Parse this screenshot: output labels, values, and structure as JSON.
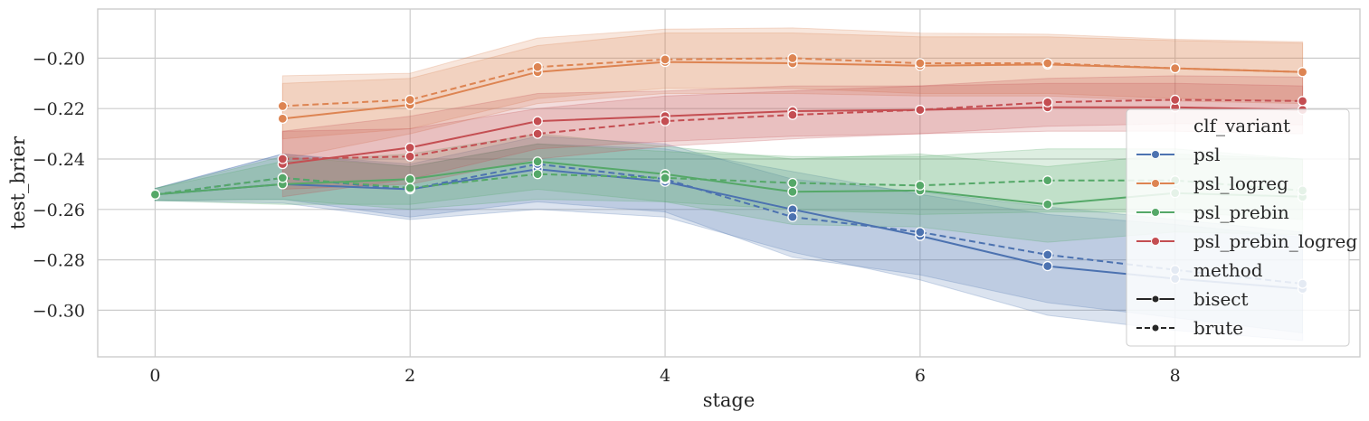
{
  "chart_data": {
    "type": "line",
    "xlabel": "stage",
    "ylabel": "test_brier",
    "xlim": [
      -0.45,
      9.45
    ],
    "ylim": [
      -0.3185,
      -0.1805
    ],
    "xticks": [
      0,
      2,
      4,
      6,
      8
    ],
    "yticks": [
      -0.2,
      -0.22,
      -0.24,
      -0.26,
      -0.28,
      -0.3
    ],
    "xtick_labels": [
      "0",
      "2",
      "4",
      "6",
      "8"
    ],
    "ytick_labels": [
      "−0.20",
      "−0.22",
      "−0.24",
      "−0.26",
      "−0.28",
      "−0.30"
    ],
    "grid": true,
    "legend_position": "right",
    "legend": {
      "hue_title": "clf_variant",
      "style_title": "method",
      "bisect_label": "bisect",
      "brute_label": "brute"
    },
    "series": [
      {
        "name": "psl",
        "color": "#4c72b0",
        "bisect": {
          "x": [
            0,
            1,
            2,
            3,
            4,
            5,
            6,
            7,
            8,
            9
          ],
          "y": [
            -0.2541,
            -0.25,
            -0.252,
            -0.244,
            -0.249,
            -0.26,
            -0.2705,
            -0.2825,
            -0.2875,
            -0.2915
          ]
        },
        "brute": {
          "x": [
            0,
            1,
            2,
            3,
            4,
            5,
            6,
            7,
            8,
            9
          ],
          "y": [
            -0.2541,
            -0.2475,
            -0.252,
            -0.242,
            -0.248,
            -0.263,
            -0.269,
            -0.278,
            -0.284,
            -0.2895
          ]
        },
        "band_bisect": {
          "lo": [
            -0.2565,
            -0.2575,
            -0.264,
            -0.26,
            -0.263,
            -0.277,
            -0.288,
            -0.302,
            -0.308,
            -0.312
          ],
          "hi": [
            -0.2517,
            -0.238,
            -0.243,
            -0.234,
            -0.236,
            -0.245,
            -0.254,
            -0.262,
            -0.266,
            -0.271
          ]
        },
        "band_brute": {
          "lo": [
            -0.2565,
            -0.256,
            -0.263,
            -0.257,
            -0.261,
            -0.279,
            -0.286,
            -0.297,
            -0.303,
            -0.309
          ],
          "hi": [
            -0.2517,
            -0.238,
            -0.242,
            -0.231,
            -0.234,
            -0.248,
            -0.253,
            -0.259,
            -0.264,
            -0.269
          ]
        }
      },
      {
        "name": "psl_logreg",
        "color": "#dd8452",
        "bisect": {
          "x": [
            1,
            2,
            3,
            4,
            5,
            6,
            7,
            8,
            9
          ],
          "y": [
            -0.224,
            -0.2185,
            -0.2055,
            -0.2015,
            -0.202,
            -0.203,
            -0.2025,
            -0.204,
            -0.2055
          ]
        },
        "brute": {
          "x": [
            1,
            2,
            3,
            4,
            5,
            6,
            7,
            8,
            9
          ],
          "y": [
            -0.219,
            -0.2165,
            -0.2035,
            -0.2005,
            -0.2,
            -0.202,
            -0.202,
            -0.204,
            -0.2055
          ]
        },
        "band_bisect": {
          "lo": [
            -0.24,
            -0.23,
            -0.218,
            -0.214,
            -0.214,
            -0.215,
            -0.215,
            -0.217,
            -0.218
          ],
          "hi": [
            -0.21,
            -0.208,
            -0.195,
            -0.19,
            -0.19,
            -0.1915,
            -0.1915,
            -0.193,
            -0.194
          ]
        },
        "band_brute": {
          "lo": [
            -0.232,
            -0.228,
            -0.216,
            -0.212,
            -0.212,
            -0.214,
            -0.214,
            -0.216,
            -0.217
          ],
          "hi": [
            -0.207,
            -0.206,
            -0.192,
            -0.1885,
            -0.188,
            -0.19,
            -0.1905,
            -0.1925,
            -0.1935
          ]
        }
      },
      {
        "name": "psl_prebin",
        "color": "#55a868",
        "bisect": {
          "x": [
            0,
            1,
            2,
            3,
            4,
            5,
            6,
            7,
            8,
            9
          ],
          "y": [
            -0.2541,
            -0.25,
            -0.248,
            -0.241,
            -0.246,
            -0.253,
            -0.2525,
            -0.258,
            -0.2535,
            -0.255
          ]
        },
        "brute": {
          "x": [
            0,
            1,
            2,
            3,
            4,
            5,
            6,
            7,
            8,
            9
          ],
          "y": [
            -0.2541,
            -0.2475,
            -0.2515,
            -0.246,
            -0.2475,
            -0.2495,
            -0.2505,
            -0.2485,
            -0.2485,
            -0.2525
          ]
        },
        "band_bisect": {
          "lo": [
            -0.2565,
            -0.258,
            -0.258,
            -0.252,
            -0.257,
            -0.266,
            -0.267,
            -0.273,
            -0.269,
            -0.27
          ],
          "hi": [
            -0.2517,
            -0.241,
            -0.238,
            -0.23,
            -0.235,
            -0.24,
            -0.238,
            -0.243,
            -0.238,
            -0.24
          ]
        },
        "band_brute": {
          "lo": [
            -0.2565,
            -0.256,
            -0.26,
            -0.256,
            -0.257,
            -0.26,
            -0.262,
            -0.261,
            -0.261,
            -0.264
          ],
          "hi": [
            -0.2517,
            -0.239,
            -0.243,
            -0.234,
            -0.237,
            -0.239,
            -0.239,
            -0.236,
            -0.236,
            -0.24
          ]
        }
      },
      {
        "name": "psl_prebin_logreg",
        "color": "#c44e52",
        "bisect": {
          "x": [
            1,
            2,
            3,
            4,
            5,
            6,
            7,
            8,
            9
          ],
          "y": [
            -0.242,
            -0.2355,
            -0.225,
            -0.223,
            -0.221,
            -0.2205,
            -0.2195,
            -0.2195,
            -0.2205
          ]
        },
        "brute": {
          "x": [
            1,
            2,
            3,
            4,
            5,
            6,
            7,
            8,
            9
          ],
          "y": [
            -0.24,
            -0.239,
            -0.23,
            -0.225,
            -0.2225,
            -0.2205,
            -0.2175,
            -0.2165,
            -0.217
          ]
        },
        "band_bisect": {
          "lo": [
            -0.255,
            -0.248,
            -0.236,
            -0.233,
            -0.231,
            -0.23,
            -0.229,
            -0.229,
            -0.23
          ],
          "hi": [
            -0.229,
            -0.223,
            -0.214,
            -0.213,
            -0.211,
            -0.211,
            -0.21,
            -0.21,
            -0.211
          ]
        },
        "band_brute": {
          "lo": [
            -0.252,
            -0.25,
            -0.24,
            -0.235,
            -0.232,
            -0.23,
            -0.227,
            -0.226,
            -0.2265
          ],
          "hi": [
            -0.229,
            -0.228,
            -0.22,
            -0.215,
            -0.213,
            -0.211,
            -0.208,
            -0.207,
            -0.2075
          ]
        }
      }
    ]
  }
}
